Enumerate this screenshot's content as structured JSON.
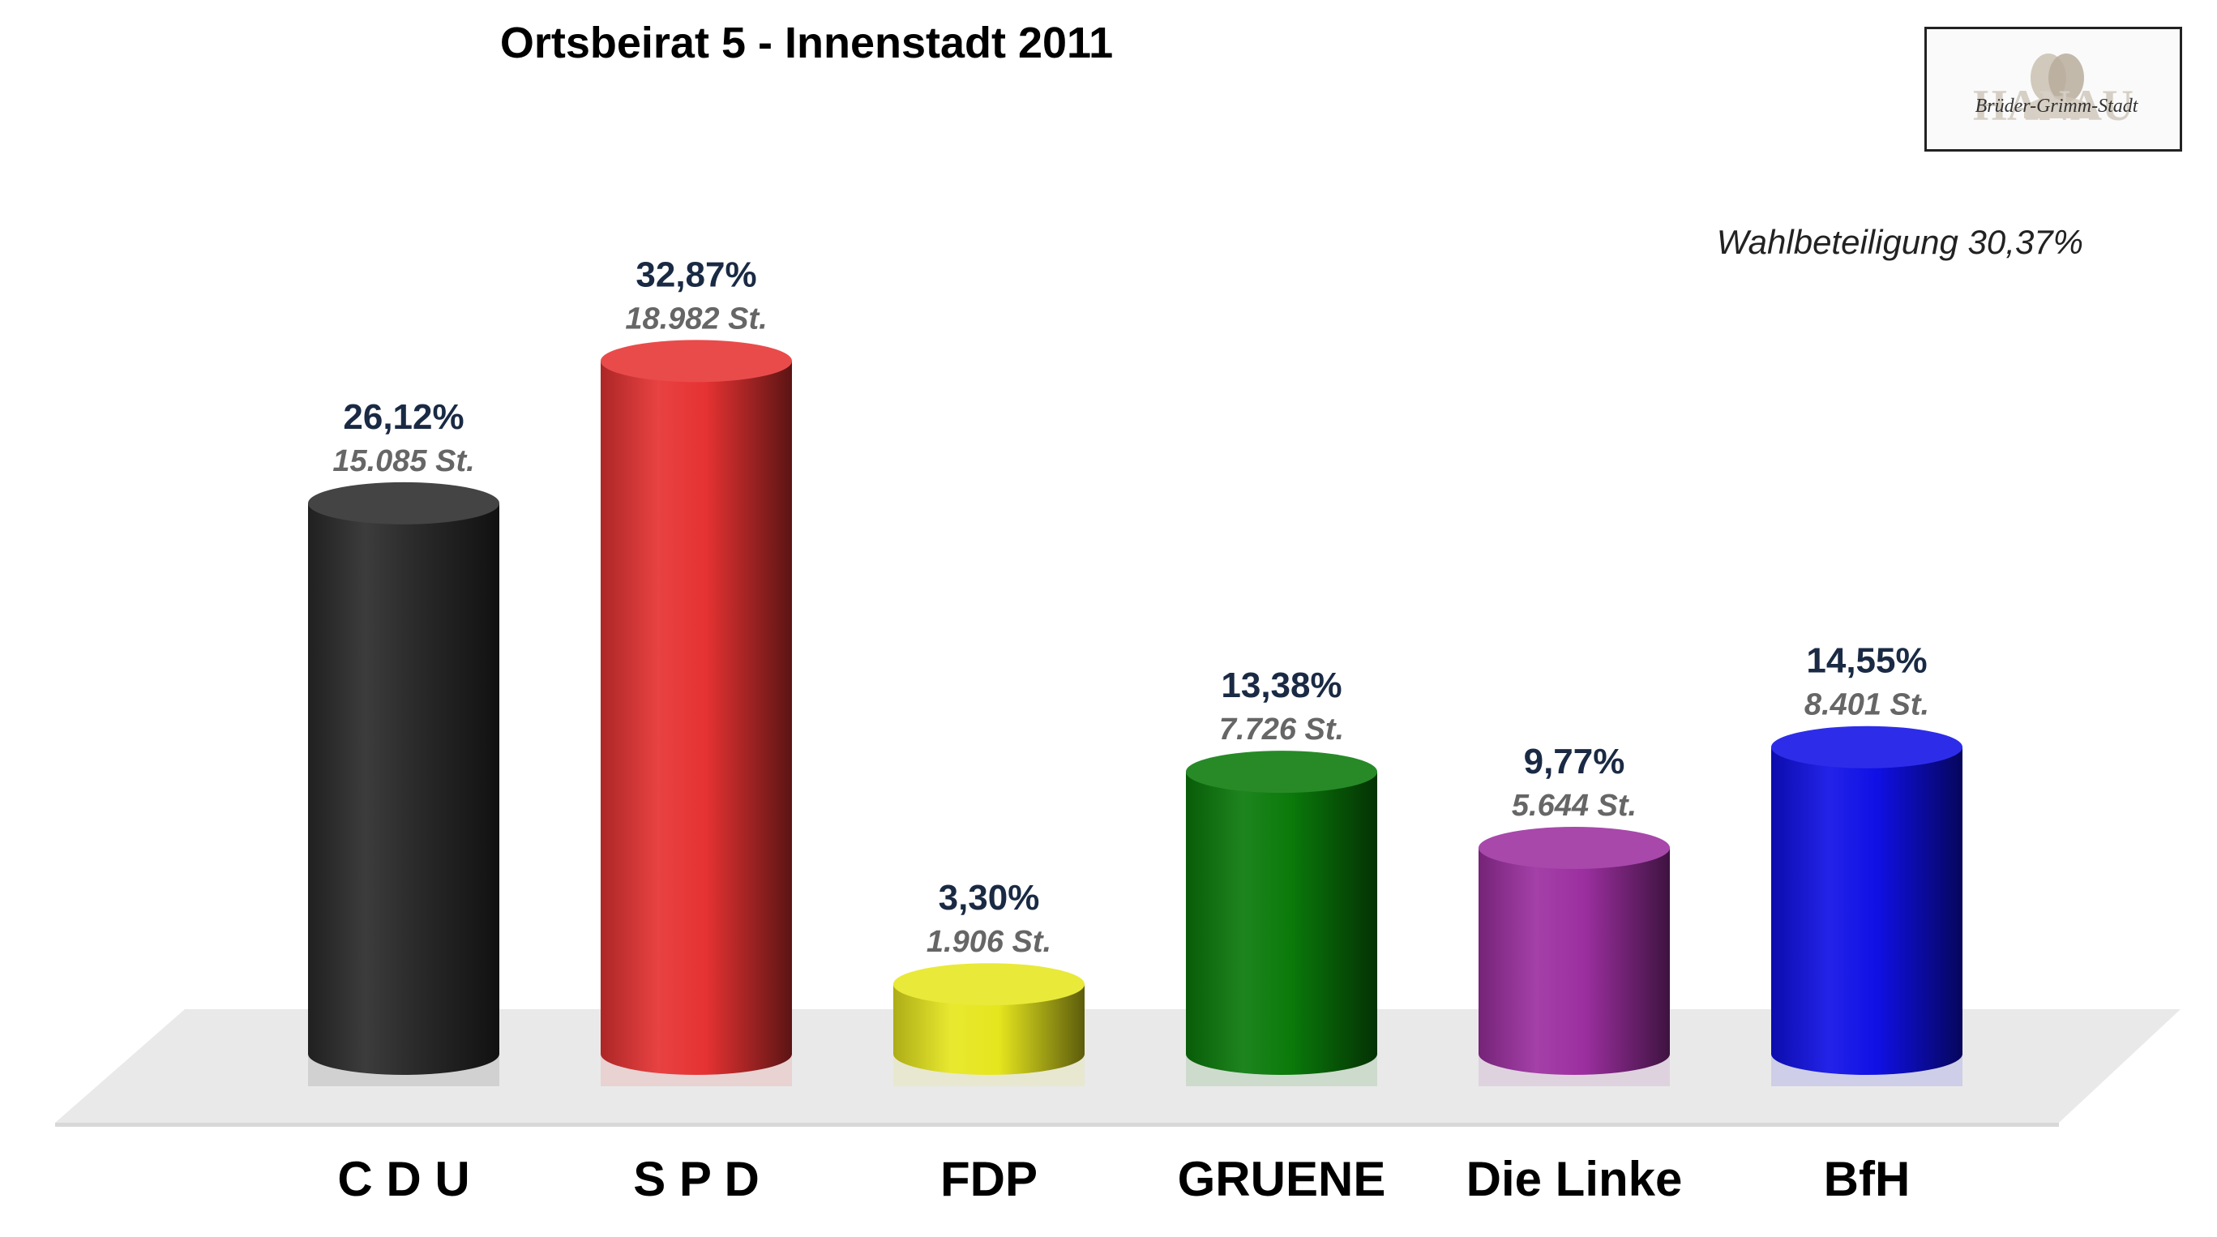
{
  "chart_data": {
    "type": "bar",
    "title": "Ortsbeirat 5 - Innenstadt 2011",
    "annotation": "Wahlbeteiligung 30,37%",
    "xlabel": "",
    "ylabel": "",
    "ylim": [
      0,
      40
    ],
    "grid": false,
    "legend": "none",
    "categories": [
      "C D U",
      "S P D",
      "FDP",
      "GRUENE",
      "Die Linke",
      "BfH"
    ],
    "values": [
      26.12,
      32.87,
      3.3,
      13.38,
      9.77,
      14.55
    ],
    "percent_labels": [
      "26,12%",
      "32,87%",
      "3,30%",
      "13,38%",
      "9,77%",
      "14,55%"
    ],
    "vote_labels": [
      "15.085 St.",
      "18.982 St.",
      "1.906 St.",
      "7.726 St.",
      "5.644 St.",
      "8.401 St."
    ],
    "votes": [
      15085,
      18982,
      1906,
      7726,
      5644,
      8401
    ],
    "colors": [
      "#2b2b2b",
      "#e63232",
      "#e6e61e",
      "#0a7a0a",
      "#9c2fa0",
      "#1010e6"
    ]
  },
  "logo": {
    "text": "HANAU",
    "script": "Brüder-Grimm-Stadt"
  }
}
